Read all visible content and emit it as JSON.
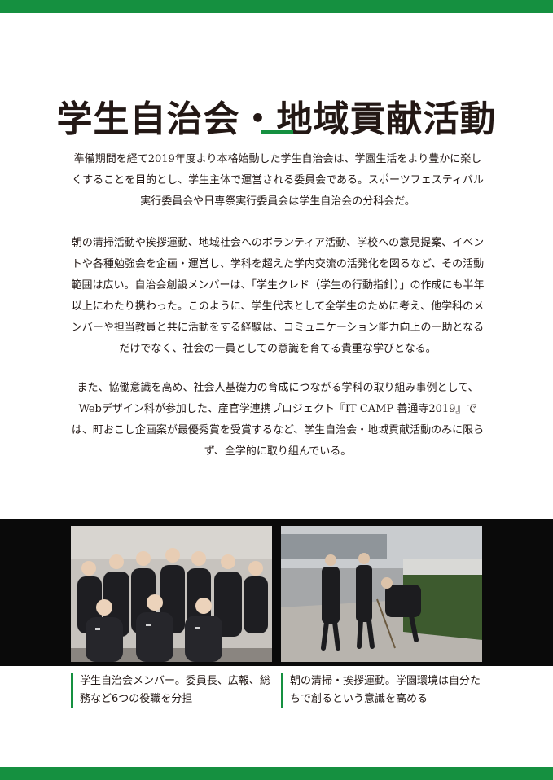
{
  "title": "学生自治会・地域貢献活動",
  "paragraphs": [
    "準備期間を経て2019年度より本格始動した学生自治会は、学園生活をより豊かに楽しくすることを目的とし、学生主体で運営される委員会である。スポーツフェスティバル実行委員会や日専祭実行委員会は学生自治会の分科会だ。",
    "朝の清掃活動や挨拶運動、地域社会へのボランティア活動、学校への意見提案、イベントや各種勉強会を企画・運営し、学科を超えた学内交流の活発化を図るなど、その活動範囲は広い。自治会創設メンバーは、「学生クレド（学生の行動指針）」の作成にも半年以上にわたり携わった。このように、学生代表として全学生のために考え、他学科のメンバーや担当教員と共に活動をする経験は、コミュニケーション能力向上の一助となるだけでなく、社会の一員としての意識を育てる貴重な学びとなる。",
    "また、協働意識を高め、社会人基礎力の育成につながる学科の取り組み事例として、Webデザイン科が参加した、産官学連携プロジェクト『IT CAMP 善通寺2019』では、町おこし企画案が最優秀賞を受賞するなど、学生自治会・地域貢献活動のみに限らず、全学的に取り組んでいる。"
  ],
  "photos": {
    "left_caption": "学生自治会メンバー。委員長、広報、総務など6つの役職を分担",
    "right_caption": "朝の清掃・挨拶運動。学園環境は自分たちで創るという意識を高める"
  },
  "colors": {
    "accent": "#159040",
    "text": "#231815",
    "band": "#0a0a0a"
  }
}
